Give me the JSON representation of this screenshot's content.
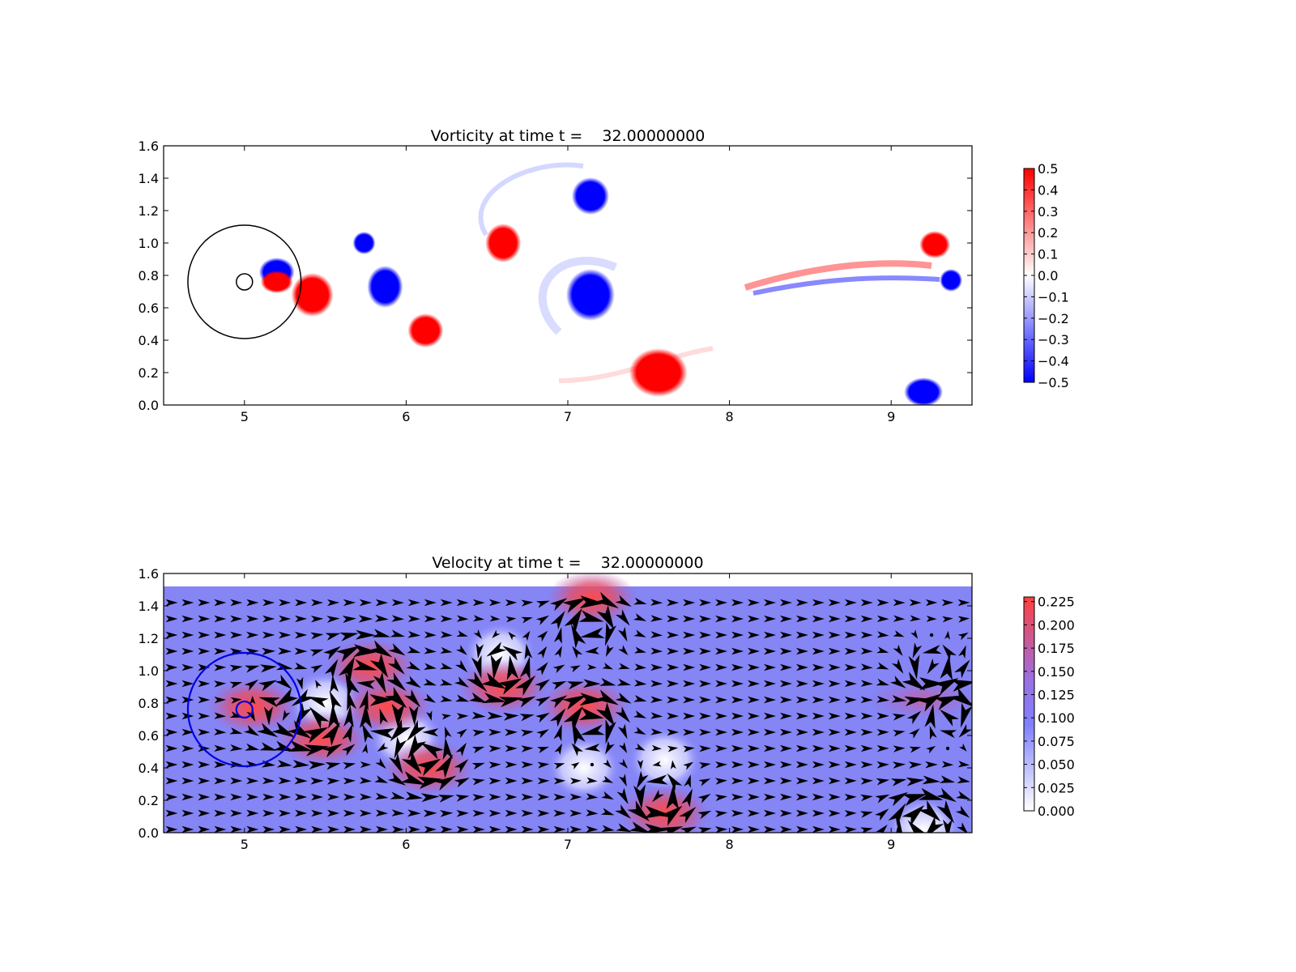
{
  "chart_data": [
    {
      "type": "heatmap",
      "title": "Vorticity at time t =    32.00000000",
      "xlim": [
        4.5,
        9.5
      ],
      "ylim": [
        0.0,
        1.6
      ],
      "xticks": [
        "5",
        "6",
        "7",
        "8",
        "9"
      ],
      "yticks": [
        "0.0",
        "0.2",
        "0.4",
        "0.6",
        "0.8",
        "1.0",
        "1.2",
        "1.4",
        "1.6"
      ],
      "colorbar": {
        "min": -0.5,
        "max": 0.5,
        "ticks": [
          "0.5",
          "0.4",
          "0.3",
          "0.2",
          "0.1",
          "0.0",
          "−0.1",
          "−0.2",
          "−0.3",
          "−0.4",
          "−0.5"
        ],
        "colors": [
          "#0000ff",
          "#ffffff",
          "#ff0000"
        ]
      },
      "vortices": [
        {
          "x": 5.2,
          "y": 0.82,
          "sign": "negative"
        },
        {
          "x": 5.2,
          "y": 0.76,
          "sign": "positive"
        },
        {
          "x": 5.42,
          "y": 0.68,
          "sign": "positive"
        },
        {
          "x": 5.74,
          "y": 1.0,
          "sign": "negative"
        },
        {
          "x": 5.87,
          "y": 0.73,
          "sign": "negative"
        },
        {
          "x": 6.12,
          "y": 0.46,
          "sign": "positive"
        },
        {
          "x": 6.6,
          "y": 1.0,
          "sign": "positive"
        },
        {
          "x": 7.14,
          "y": 1.29,
          "sign": "negative"
        },
        {
          "x": 7.14,
          "y": 0.68,
          "sign": "negative"
        },
        {
          "x": 7.56,
          "y": 0.2,
          "sign": "positive"
        },
        {
          "x": 9.27,
          "y": 0.99,
          "sign": "positive"
        },
        {
          "x": 9.37,
          "y": 0.77,
          "sign": "negative"
        },
        {
          "x": 9.2,
          "y": 0.08,
          "sign": "negative"
        }
      ],
      "circles": [
        {
          "x": 5.0,
          "y": 0.76,
          "r": 0.35,
          "color": "#000000"
        },
        {
          "x": 5.0,
          "y": 0.76,
          "r": 0.05,
          "color": "#000000"
        }
      ]
    },
    {
      "type": "heatmap",
      "title": "Velocity at time t =    32.00000000",
      "xlim": [
        4.5,
        9.5
      ],
      "ylim": [
        0.0,
        1.6
      ],
      "xticks": [
        "5",
        "6",
        "7",
        "8",
        "9"
      ],
      "yticks": [
        "0.0",
        "0.2",
        "0.4",
        "0.6",
        "0.8",
        "1.0",
        "1.2",
        "1.4",
        "1.6"
      ],
      "field_ymax": 1.52,
      "colorbar": {
        "min": 0.0,
        "max": 0.23,
        "ticks": [
          "0.225",
          "0.200",
          "0.175",
          "0.150",
          "0.125",
          "0.100",
          "0.075",
          "0.050",
          "0.025",
          "0.000"
        ],
        "colors": [
          "#ffffff",
          "#8080ff",
          "#9b6fdf",
          "#ff4040"
        ]
      },
      "hotspots": [
        {
          "x": 5.05,
          "y": 0.78,
          "level": "high"
        },
        {
          "x": 5.48,
          "y": 0.58,
          "level": "high"
        },
        {
          "x": 5.78,
          "y": 1.03,
          "level": "high"
        },
        {
          "x": 5.88,
          "y": 0.78,
          "level": "high"
        },
        {
          "x": 6.14,
          "y": 0.4,
          "level": "high"
        },
        {
          "x": 6.6,
          "y": 0.9,
          "level": "high"
        },
        {
          "x": 7.15,
          "y": 1.45,
          "level": "high"
        },
        {
          "x": 7.1,
          "y": 0.78,
          "level": "high"
        },
        {
          "x": 7.6,
          "y": 0.12,
          "level": "high"
        },
        {
          "x": 9.2,
          "y": 0.82,
          "level": "medium"
        }
      ],
      "calm": [
        {
          "x": 6.58,
          "y": 1.1
        },
        {
          "x": 6.0,
          "y": 0.58
        },
        {
          "x": 7.1,
          "y": 0.4
        },
        {
          "x": 7.6,
          "y": 0.45
        },
        {
          "x": 5.5,
          "y": 0.8
        },
        {
          "x": 9.2,
          "y": 0.02
        }
      ],
      "circles": [
        {
          "x": 5.0,
          "y": 0.76,
          "r": 0.35,
          "color": "#0000dd"
        },
        {
          "x": 5.0,
          "y": 0.76,
          "r": 0.05,
          "color": "#0000dd"
        }
      ]
    }
  ]
}
